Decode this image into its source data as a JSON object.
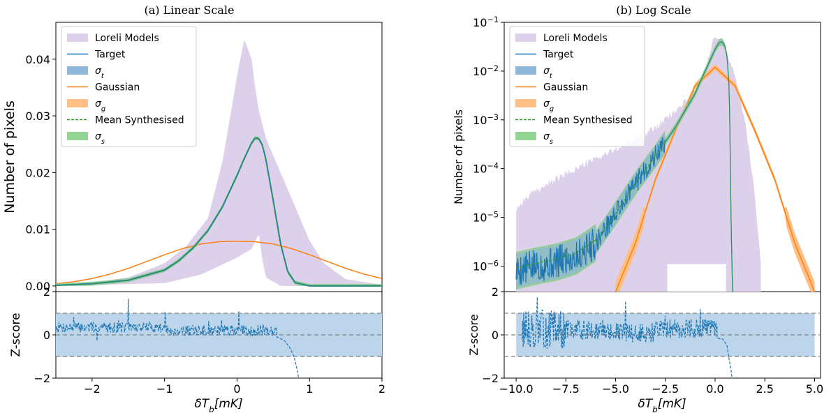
{
  "chart_data": [
    {
      "type": "line",
      "title": "(a) Linear Scale",
      "yscale": "linear",
      "xlabel": "δT_b[mK]",
      "ylabel": "Number of pixels",
      "xlim": [
        -2.5,
        2.0
      ],
      "ylim": [
        -0.001,
        0.0465
      ],
      "xticks": [
        -2,
        -1,
        0,
        1,
        2
      ],
      "xtick_labels": [
        "−2",
        "−1",
        "0",
        "1",
        "2"
      ],
      "yticks": [
        0.0,
        0.01,
        0.02,
        0.03,
        0.04
      ],
      "ytick_labels": [
        "0.00",
        "0.01",
        "0.02",
        "0.03",
        "0.04"
      ],
      "legend_placement": "top-left",
      "legend": [
        {
          "label": "Loreli Models",
          "kind": "patch",
          "color": "#dcd0ea"
        },
        {
          "label": "Target",
          "kind": "line",
          "color": "#1f77b4"
        },
        {
          "label": "σ_t",
          "kind": "patch",
          "color": "#8fb7d9"
        },
        {
          "label": "Gaussian",
          "kind": "line",
          "color": "#ff7f0e"
        },
        {
          "label": "σ_g",
          "kind": "patch",
          "color": "#ffbf86"
        },
        {
          "label": "Mean Synthesised",
          "kind": "dashed",
          "color": "#2ca02c"
        },
        {
          "label": "σ_s",
          "kind": "patch",
          "color": "#94d494"
        }
      ],
      "series": [
        {
          "name": "Loreli Models upper",
          "x": [
            -2.5,
            -2.0,
            -1.5,
            -1.0,
            -0.7,
            -0.4,
            -0.2,
            0.0,
            0.1,
            0.2,
            0.25,
            0.3,
            0.4,
            0.6,
            0.8,
            1.0,
            1.2,
            1.5,
            2.0
          ],
          "values": [
            0.0002,
            0.0006,
            0.0015,
            0.004,
            0.007,
            0.012,
            0.022,
            0.037,
            0.0435,
            0.04,
            0.035,
            0.031,
            0.026,
            0.02,
            0.014,
            0.008,
            0.004,
            0.0012,
            0.0002
          ]
        },
        {
          "name": "Loreli Models lower",
          "x": [
            -2.5,
            -1.0,
            -0.5,
            0.0,
            0.2,
            0.3,
            0.35,
            0.4,
            0.6,
            1.0,
            2.0
          ],
          "values": [
            0,
            0.0005,
            0.002,
            0.005,
            0.0065,
            0.0092,
            0.0045,
            0.0015,
            0,
            0,
            0
          ]
        },
        {
          "name": "Target",
          "x": [
            -2.5,
            -2.0,
            -1.5,
            -1.0,
            -0.8,
            -0.6,
            -0.4,
            -0.2,
            0.0,
            0.1,
            0.2,
            0.25,
            0.3,
            0.35,
            0.4,
            0.5,
            0.6,
            0.7,
            0.8,
            1.0,
            2.0
          ],
          "values": [
            0.0001,
            0.0004,
            0.001,
            0.0028,
            0.0045,
            0.0068,
            0.0098,
            0.014,
            0.0195,
            0.0225,
            0.0252,
            0.0261,
            0.026,
            0.0248,
            0.0222,
            0.015,
            0.0075,
            0.0025,
            0.0006,
            0.0,
            0.0
          ]
        },
        {
          "name": "Gaussian",
          "x": [
            -2.5,
            -2.25,
            -2.0,
            -1.75,
            -1.5,
            -1.25,
            -1.0,
            -0.75,
            -0.5,
            -0.25,
            0.0,
            0.25,
            0.5,
            0.75,
            1.0,
            1.25,
            1.5,
            1.75,
            2.0
          ],
          "values": [
            0.0004,
            0.00075,
            0.0013,
            0.0021,
            0.0031,
            0.0043,
            0.0055,
            0.0066,
            0.0074,
            0.0078,
            0.0079,
            0.0078,
            0.0074,
            0.0066,
            0.0055,
            0.0043,
            0.0031,
            0.0021,
            0.0013
          ]
        }
      ],
      "zscore": {
        "ylabel": "Z-score",
        "ylim": [
          -2,
          2
        ],
        "yticks": [
          -2,
          0,
          2
        ],
        "ytick_labels": [
          "−2",
          "0",
          "2"
        ],
        "band": [
          -1,
          1
        ],
        "reference_lines": [
          -1,
          0,
          1
        ],
        "x_range": [
          -2.5,
          0.85
        ],
        "seed": 7,
        "tail": [
          [
            0.55,
            -0.1
          ],
          [
            0.65,
            -0.25
          ],
          [
            0.72,
            -0.55
          ],
          [
            0.78,
            -0.95
          ],
          [
            0.82,
            -1.45
          ],
          [
            0.85,
            -2.0
          ]
        ]
      }
    },
    {
      "type": "line",
      "title": "(b) Log Scale",
      "yscale": "log",
      "xlabel": "δT_b[mK]",
      "ylabel": "Number of pixels",
      "xlim": [
        -10.6,
        5.3
      ],
      "ylim": [
        3e-07,
        0.1
      ],
      "xticks": [
        -10.0,
        -7.5,
        -5.0,
        -2.5,
        0.0,
        2.5,
        5.0
      ],
      "xtick_labels": [
        "−10.0",
        "−7.5",
        "−5.0",
        "−2.5",
        "0.0",
        "2.5",
        "5.0"
      ],
      "yticks": [
        1e-06,
        1e-05,
        0.0001,
        0.001,
        0.01,
        0.1
      ],
      "ytick_exponents": [
        "−6",
        "−5",
        "−4",
        "−3",
        "−2",
        "−1"
      ],
      "legend_placement": "top-left",
      "legend": [
        {
          "label": "Loreli Models",
          "kind": "patch",
          "color": "#dcd0ea"
        },
        {
          "label": "Target",
          "kind": "line",
          "color": "#1f77b4"
        },
        {
          "label": "σ_t",
          "kind": "patch",
          "color": "#8fb7d9"
        },
        {
          "label": "Gaussian",
          "kind": "line",
          "color": "#ff7f0e"
        },
        {
          "label": "σ_g",
          "kind": "patch",
          "color": "#ffbf86"
        },
        {
          "label": "Mean Synthesised",
          "kind": "dashed",
          "color": "#2ca02c"
        },
        {
          "label": "σ_s",
          "kind": "patch",
          "color": "#94d494"
        }
      ],
      "series": [
        {
          "name": "Loreli Models upper",
          "x": [
            -10.0,
            -9.5,
            -9.0,
            -8.0,
            -7.0,
            -6.0,
            -5.0,
            -4.0,
            -3.0,
            -2.0,
            -1.0,
            -0.5,
            0.0,
            0.3,
            0.6,
            1.0,
            1.5,
            2.0,
            2.3
          ],
          "values": [
            1.5e-05,
            2.5e-05,
            3.5e-05,
            6e-05,
            0.0001,
            0.00016,
            0.00025,
            0.0004,
            0.0007,
            0.0015,
            0.004,
            0.01,
            0.06,
            0.045,
            0.025,
            0.008,
            0.001,
            3e-05,
            1e-06
          ]
        },
        {
          "name": "Target",
          "x": [
            -10.0,
            -9.0,
            -8.0,
            -7.0,
            -6.0,
            -5.0,
            -4.0,
            -3.0,
            -2.0,
            -1.0,
            -0.5,
            0.0,
            0.2,
            0.35,
            0.5,
            0.6,
            0.7,
            0.75,
            0.8,
            0.9
          ],
          "values": [
            8e-07,
            1e-06,
            1.2e-06,
            1.6e-06,
            3e-06,
            1.2e-05,
            5e-05,
            0.00018,
            0.0007,
            0.0035,
            0.01,
            0.028,
            0.038,
            0.04,
            0.032,
            0.02,
            0.005,
            0.0005,
            1e-05,
            1e-07
          ]
        },
        {
          "name": "Gaussian",
          "x": [
            -5.0,
            -4.0,
            -3.0,
            -2.0,
            -1.0,
            0.0,
            1.0,
            2.0,
            3.0,
            4.0,
            5.0
          ],
          "values": [
            3e-07,
            3e-06,
            6e-05,
            0.0006,
            0.005,
            0.012,
            0.005,
            0.0006,
            6e-05,
            3e-06,
            3e-07
          ]
        }
      ],
      "zscore": {
        "ylabel": "Z-score",
        "ylim": [
          -2,
          2
        ],
        "yticks": [
          -2,
          0,
          2
        ],
        "ytick_labels": [
          "−2",
          "0",
          "2"
        ],
        "band": [
          -1,
          1
        ],
        "band_x": [
          -10.0,
          5.0
        ],
        "reference_lines": [
          -1,
          0,
          1
        ],
        "x_range": [
          -9.7,
          0.85
        ],
        "seed": 13,
        "tail": [
          [
            0.1,
            -0.15
          ],
          [
            0.4,
            -0.2
          ],
          [
            0.6,
            -0.5
          ],
          [
            0.7,
            -1.1
          ],
          [
            0.8,
            -1.6
          ],
          [
            0.85,
            -2.0
          ]
        ]
      }
    }
  ]
}
